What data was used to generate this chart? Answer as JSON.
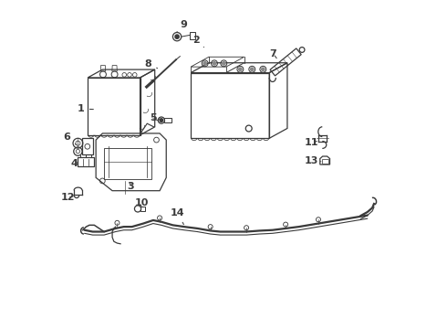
{
  "background_color": "#ffffff",
  "line_color": "#3a3a3a",
  "fig_width": 4.9,
  "fig_height": 3.6,
  "dpi": 100,
  "label_positions": {
    "1": [
      0.13,
      0.64,
      0.085,
      0.64
    ],
    "2": [
      0.43,
      0.87,
      0.43,
      0.845
    ],
    "3": [
      0.23,
      0.435,
      0.23,
      0.455
    ],
    "4": [
      0.075,
      0.5,
      0.11,
      0.5
    ],
    "5": [
      0.3,
      0.64,
      0.325,
      0.64
    ],
    "6": [
      0.06,
      0.58,
      0.085,
      0.58
    ],
    "7": [
      0.65,
      0.83,
      0.67,
      0.81
    ],
    "8": [
      0.29,
      0.8,
      0.31,
      0.775
    ],
    "9": [
      0.39,
      0.925,
      0.365,
      0.92
    ],
    "10": [
      0.255,
      0.38,
      0.27,
      0.37
    ],
    "11": [
      0.78,
      0.57,
      0.795,
      0.58
    ],
    "12": [
      0.04,
      0.395,
      0.06,
      0.4
    ],
    "13": [
      0.775,
      0.51,
      0.8,
      0.515
    ],
    "14": [
      0.37,
      0.345,
      0.39,
      0.355
    ]
  }
}
